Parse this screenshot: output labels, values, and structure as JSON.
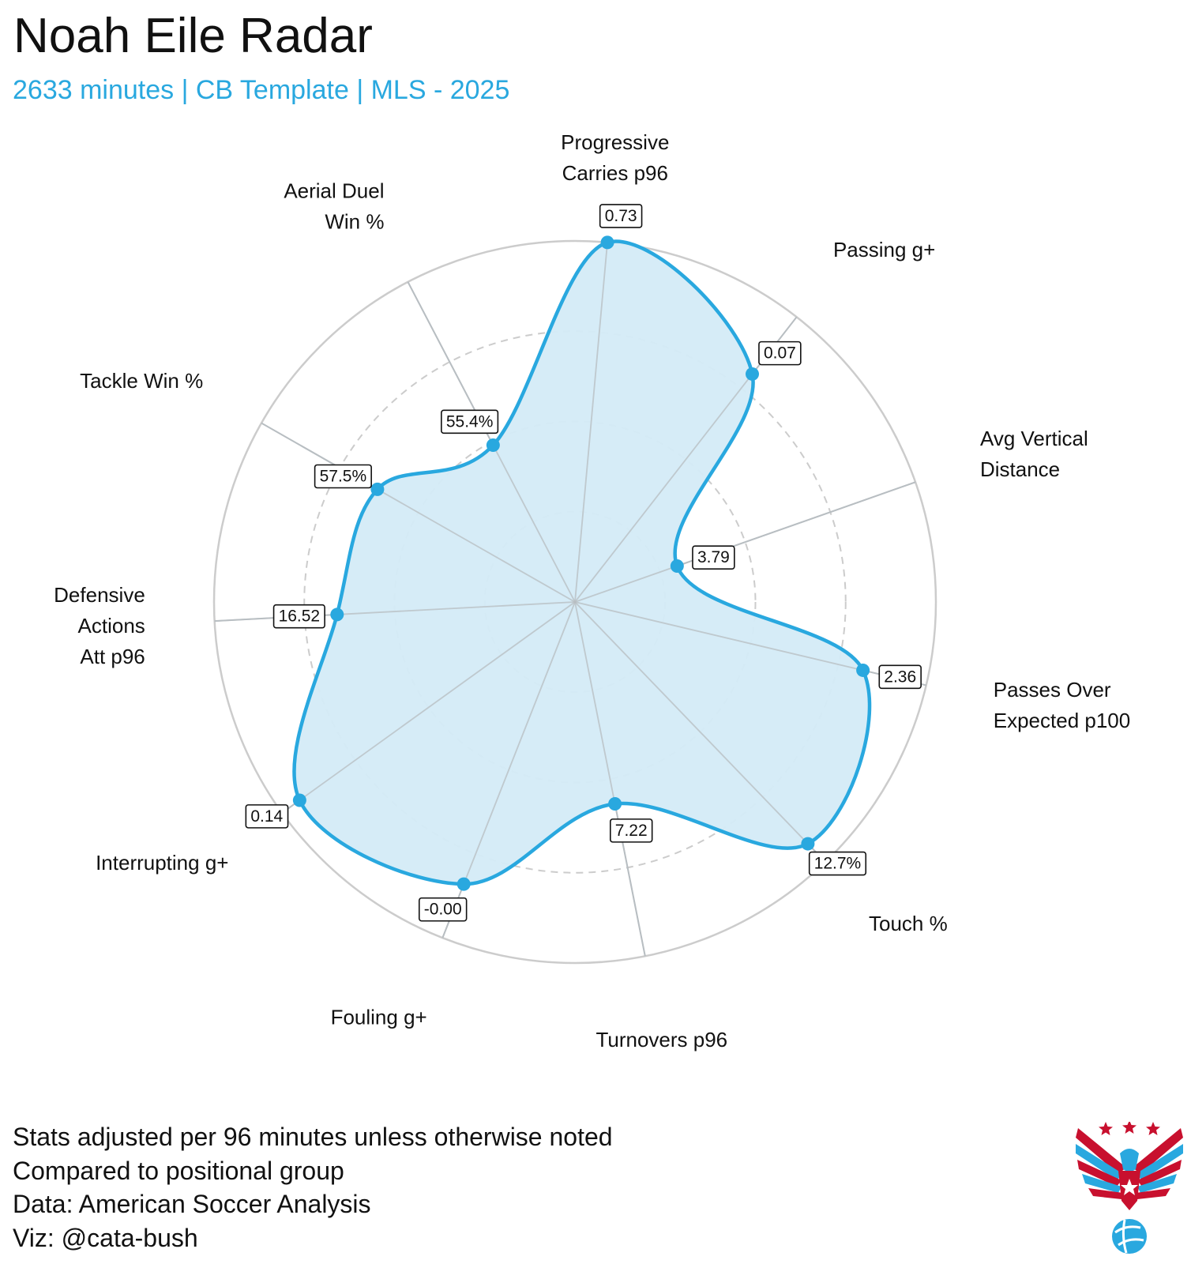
{
  "title": "Noah Eile Radar",
  "subtitle": "2633 minutes | CB Template | MLS - 2025",
  "notes": [
    "Stats adjusted per 96 minutes unless otherwise noted",
    "Compared to positional group",
    "Data: American Soccer Analysis",
    "Viz: @cata-bush"
  ],
  "colors": {
    "accent": "#29a8df",
    "fill": "#d4ebf7",
    "grid": "#cccccc",
    "spoke": "#b8bec2",
    "logo_red": "#c8102e",
    "logo_blue": "#29a8df"
  },
  "logo": {
    "icon": "eagle-soccer-logo-icon"
  },
  "chart_data": {
    "type": "radar",
    "title": "Noah Eile Radar",
    "subtitle": "2633 minutes | CB Template | MLS - 2025",
    "scale": "percentile",
    "rlim": [
      0,
      100
    ],
    "grid_rings": [
      25,
      50,
      75,
      100
    ],
    "metrics": [
      {
        "label": [
          "Progressive",
          "Carries p96"
        ],
        "value_label": "0.73",
        "percentile": 100
      },
      {
        "label": [
          "Passing g+"
        ],
        "value_label": "0.07",
        "percentile": 80
      },
      {
        "label": [
          "Avg Vertical",
          "Distance"
        ],
        "value_label": "3.79",
        "percentile": 30
      },
      {
        "label": [
          "Passes Over",
          "Expected p100"
        ],
        "value_label": "2.36",
        "percentile": 82
      },
      {
        "label": [
          "Touch %"
        ],
        "value_label": "12.7%",
        "percentile": 93
      },
      {
        "label": [
          "Turnovers p96"
        ],
        "value_label": "7.22",
        "percentile": 57
      },
      {
        "label": [
          "Fouling g+"
        ],
        "value_label": "-0.00",
        "percentile": 84
      },
      {
        "label": [
          "Interrupting g+"
        ],
        "value_label": "0.14",
        "percentile": 94
      },
      {
        "label": [
          "Defensive",
          "Actions",
          "Att p96"
        ],
        "value_label": "16.52",
        "percentile": 66
      },
      {
        "label": [
          "Tackle Win %"
        ],
        "value_label": "57.5%",
        "percentile": 63
      },
      {
        "label": [
          "Aerial Duel",
          "Win %"
        ],
        "value_label": "55.4%",
        "percentile": 49
      }
    ]
  }
}
